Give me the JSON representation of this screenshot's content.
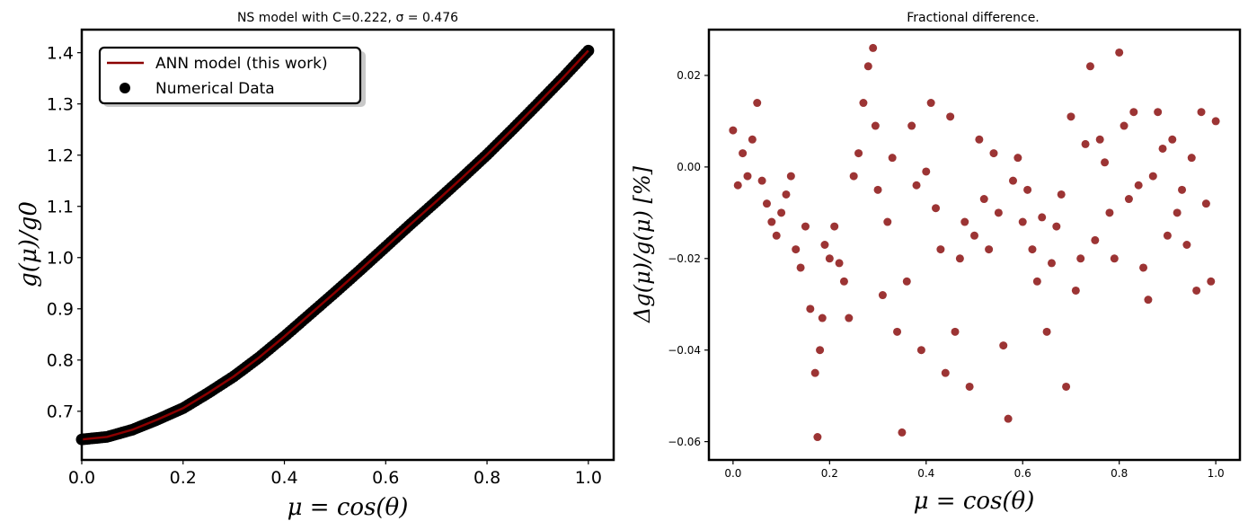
{
  "chart_data": [
    {
      "type": "line",
      "title": "NS model with C=0.222, σ = 0.476",
      "xlabel": "μ = cos(θ)",
      "ylabel": "g(μ)/g0",
      "xlim": [
        0.0,
        1.05
      ],
      "ylim": [
        0.605,
        1.445
      ],
      "x_ticks": [
        "0.0",
        "0.2",
        "0.4",
        "0.6",
        "0.8",
        "1.0"
      ],
      "y_ticks": [
        "0.7",
        "0.8",
        "0.9",
        "1.0",
        "1.1",
        "1.2",
        "1.3",
        "1.4"
      ],
      "grid": false,
      "legend_position": "upper-left",
      "legend": [
        "ANN model (this work)",
        "Numerical Data"
      ],
      "colors": {
        "line": "#8b0000",
        "points": "#000000"
      },
      "series": [
        {
          "name": "ANN model (this work)",
          "style": "line",
          "x": [
            0.0,
            0.05,
            0.1,
            0.15,
            0.2,
            0.25,
            0.3,
            0.35,
            0.4,
            0.45,
            0.5,
            0.55,
            0.6,
            0.65,
            0.7,
            0.75,
            0.8,
            0.85,
            0.9,
            0.95,
            1.0
          ],
          "y": [
            0.645,
            0.65,
            0.664,
            0.684,
            0.706,
            0.736,
            0.768,
            0.805,
            0.846,
            0.889,
            0.932,
            0.976,
            1.021,
            1.066,
            1.11,
            1.155,
            1.201,
            1.25,
            1.3,
            1.351,
            1.404
          ]
        },
        {
          "name": "Numerical Data",
          "style": "scatter",
          "x": [
            0.0,
            0.05,
            0.1,
            0.15,
            0.2,
            0.25,
            0.3,
            0.35,
            0.4,
            0.45,
            0.5,
            0.55,
            0.6,
            0.65,
            0.7,
            0.75,
            0.8,
            0.85,
            0.9,
            0.95,
            1.0
          ],
          "y": [
            0.645,
            0.65,
            0.664,
            0.684,
            0.706,
            0.736,
            0.768,
            0.805,
            0.846,
            0.889,
            0.932,
            0.976,
            1.021,
            1.066,
            1.11,
            1.155,
            1.201,
            1.25,
            1.3,
            1.351,
            1.404
          ]
        }
      ]
    },
    {
      "type": "scatter",
      "title": "Fractional difference.",
      "xlabel": "μ = cos(θ)",
      "ylabel": "Δg(μ)/g(μ) [%]",
      "xlim": [
        -0.05,
        1.05
      ],
      "ylim": [
        -0.064,
        0.03
      ],
      "x_ticks": [
        "0.0",
        "0.2",
        "0.4",
        "0.6",
        "0.8",
        "1.0"
      ],
      "y_ticks": [
        "−0.06",
        "−0.04",
        "−0.02",
        "0.00",
        "0.02"
      ],
      "grid": false,
      "colors": {
        "points": "#8b1010"
      },
      "series": [
        {
          "x": [
            0.0,
            0.01,
            0.02,
            0.03,
            0.04,
            0.05,
            0.06,
            0.07,
            0.08,
            0.09,
            0.1,
            0.11,
            0.12,
            0.13,
            0.14,
            0.15,
            0.16,
            0.17,
            0.175,
            0.18,
            0.185,
            0.19,
            0.2,
            0.21,
            0.22,
            0.23,
            0.24,
            0.25,
            0.26,
            0.27,
            0.28,
            0.29,
            0.295,
            0.3,
            0.31,
            0.32,
            0.33,
            0.34,
            0.35,
            0.36,
            0.37,
            0.38,
            0.39,
            0.4,
            0.41,
            0.42,
            0.43,
            0.44,
            0.45,
            0.46,
            0.47,
            0.48,
            0.49,
            0.5,
            0.51,
            0.52,
            0.53,
            0.54,
            0.55,
            0.56,
            0.57,
            0.58,
            0.59,
            0.6,
            0.61,
            0.62,
            0.63,
            0.64,
            0.65,
            0.66,
            0.67,
            0.68,
            0.69,
            0.7,
            0.71,
            0.72,
            0.73,
            0.74,
            0.75,
            0.76,
            0.77,
            0.78,
            0.79,
            0.8,
            0.81,
            0.82,
            0.83,
            0.84,
            0.85,
            0.86,
            0.87,
            0.88,
            0.89,
            0.9,
            0.91,
            0.92,
            0.93,
            0.94,
            0.95,
            0.96,
            0.97,
            0.98,
            0.99,
            1.0
          ],
          "y": [
            0.008,
            -0.004,
            0.003,
            -0.002,
            0.006,
            0.014,
            -0.003,
            -0.008,
            -0.012,
            -0.015,
            -0.01,
            -0.006,
            -0.002,
            -0.018,
            -0.022,
            -0.013,
            -0.031,
            -0.045,
            -0.059,
            -0.04,
            -0.033,
            -0.017,
            -0.02,
            -0.013,
            -0.021,
            -0.025,
            -0.033,
            -0.002,
            0.003,
            0.014,
            0.022,
            0.026,
            0.009,
            -0.005,
            -0.028,
            -0.012,
            0.002,
            -0.036,
            -0.058,
            -0.025,
            0.009,
            -0.004,
            -0.04,
            -0.001,
            0.014,
            -0.009,
            -0.018,
            -0.045,
            0.011,
            -0.036,
            -0.02,
            -0.012,
            -0.048,
            -0.015,
            0.006,
            -0.007,
            -0.018,
            0.003,
            -0.01,
            -0.039,
            -0.055,
            -0.003,
            0.002,
            -0.012,
            -0.005,
            -0.018,
            -0.025,
            -0.011,
            -0.036,
            -0.021,
            -0.013,
            -0.006,
            -0.048,
            0.011,
            -0.027,
            -0.02,
            0.005,
            0.022,
            -0.016,
            0.006,
            0.001,
            -0.01,
            -0.02,
            0.025,
            0.009,
            -0.007,
            0.012,
            -0.004,
            -0.022,
            -0.029,
            -0.002,
            0.012,
            0.004,
            -0.015,
            0.006,
            -0.01,
            -0.005,
            -0.017,
            0.002,
            -0.027,
            0.012,
            -0.008,
            -0.025,
            0.01
          ]
        }
      ]
    }
  ]
}
